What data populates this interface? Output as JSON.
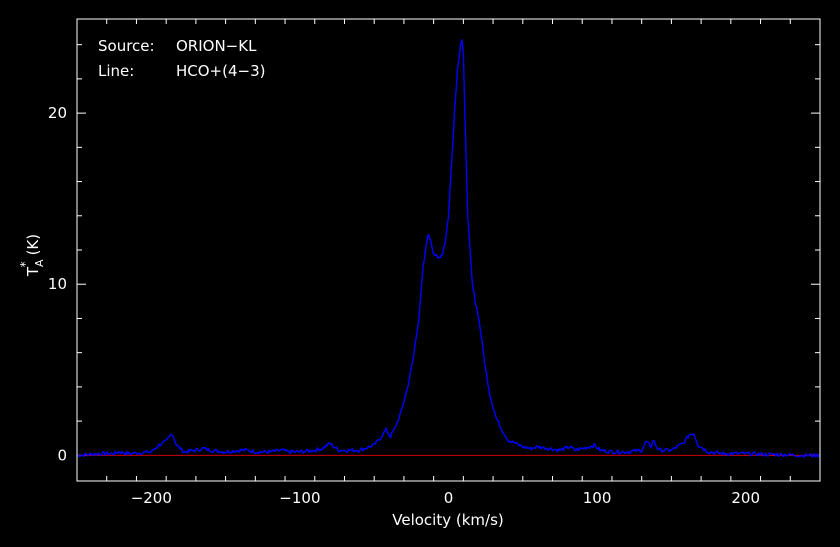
{
  "chart_data": {
    "type": "line",
    "xlabel": "Velocity (km/s)",
    "ylabel_main": "T",
    "ylabel_sub": "A",
    "ylabel_sup": "*",
    "ylabel_unit": "(K)",
    "xlim": [
      -250,
      250
    ],
    "ylim": [
      -1.5,
      25.5
    ],
    "xticks": [
      -200,
      -100,
      0,
      100,
      200
    ],
    "yticks": [
      0,
      10,
      20
    ],
    "xtick_labels": [
      "−200",
      "−100",
      "0",
      "100",
      "200"
    ],
    "ytick_labels": [
      "0",
      "10",
      "20"
    ],
    "grid": false,
    "colors": {
      "spectrum": "#0000ff",
      "baseline": "#cc0000",
      "frame": "#ffffff",
      "background": "#000000"
    },
    "annotations": {
      "source_label": "Source:",
      "source_value": "ORION−KL",
      "line_label": "Line:",
      "line_value": "HCO+(4−3)"
    },
    "baseline_y": 0,
    "series": [
      {
        "x": [
          -250,
          -235,
          -225,
          -222,
          -215,
          -200,
          -195,
          -190,
          -186,
          -183,
          -178,
          -170,
          -165,
          -160,
          -150,
          -140,
          -135,
          -130,
          -120,
          -112,
          -108,
          -100,
          -90,
          -85,
          -80,
          -77,
          -74,
          -68,
          -60,
          -50,
          -46,
          -42,
          -39,
          -36,
          -32,
          -28,
          -24,
          -20,
          -17,
          -14,
          -12,
          -10,
          -7,
          -4,
          -2,
          0,
          2,
          4,
          6,
          8,
          9,
          10,
          11,
          13,
          16,
          18,
          20,
          22,
          25,
          28,
          32,
          36,
          40,
          45,
          50,
          55,
          60,
          68,
          75,
          82,
          85,
          90,
          95,
          98,
          102,
          110,
          120,
          130,
          133,
          136,
          138,
          140,
          142,
          150,
          158,
          162,
          165,
          168,
          175,
          185,
          200,
          215,
          225,
          235,
          250
        ],
        "y": [
          0,
          0.1,
          0.1,
          0.2,
          0.1,
          0.2,
          0.6,
          0.8,
          1.3,
          0.6,
          0.2,
          0.3,
          0.4,
          0.3,
          0.2,
          0.3,
          0.3,
          0.2,
          0.2,
          0.3,
          0.2,
          0.2,
          0.3,
          0.4,
          0.7,
          0.5,
          0.3,
          0.3,
          0.3,
          0.6,
          1.0,
          1.5,
          1.1,
          1.6,
          2.5,
          3.8,
          5.5,
          8,
          11,
          12.9,
          12.6,
          11.8,
          11.5,
          11.8,
          12.6,
          14,
          17,
          20,
          22.5,
          24,
          24.3,
          23.5,
          20,
          14,
          10,
          9,
          8.2,
          7,
          5,
          3.5,
          2.2,
          1.5,
          0.9,
          0.7,
          0.5,
          0.4,
          0.5,
          0.4,
          0.3,
          0.5,
          0.3,
          0.4,
          0.5,
          0.6,
          0.3,
          0.2,
          0.2,
          0.3,
          0.8,
          0.5,
          0.9,
          0.5,
          0.3,
          0.3,
          0.7,
          1.2,
          1.3,
          0.6,
          0.2,
          0.1,
          0.1,
          0.05,
          0.05,
          0,
          0
        ]
      }
    ]
  }
}
